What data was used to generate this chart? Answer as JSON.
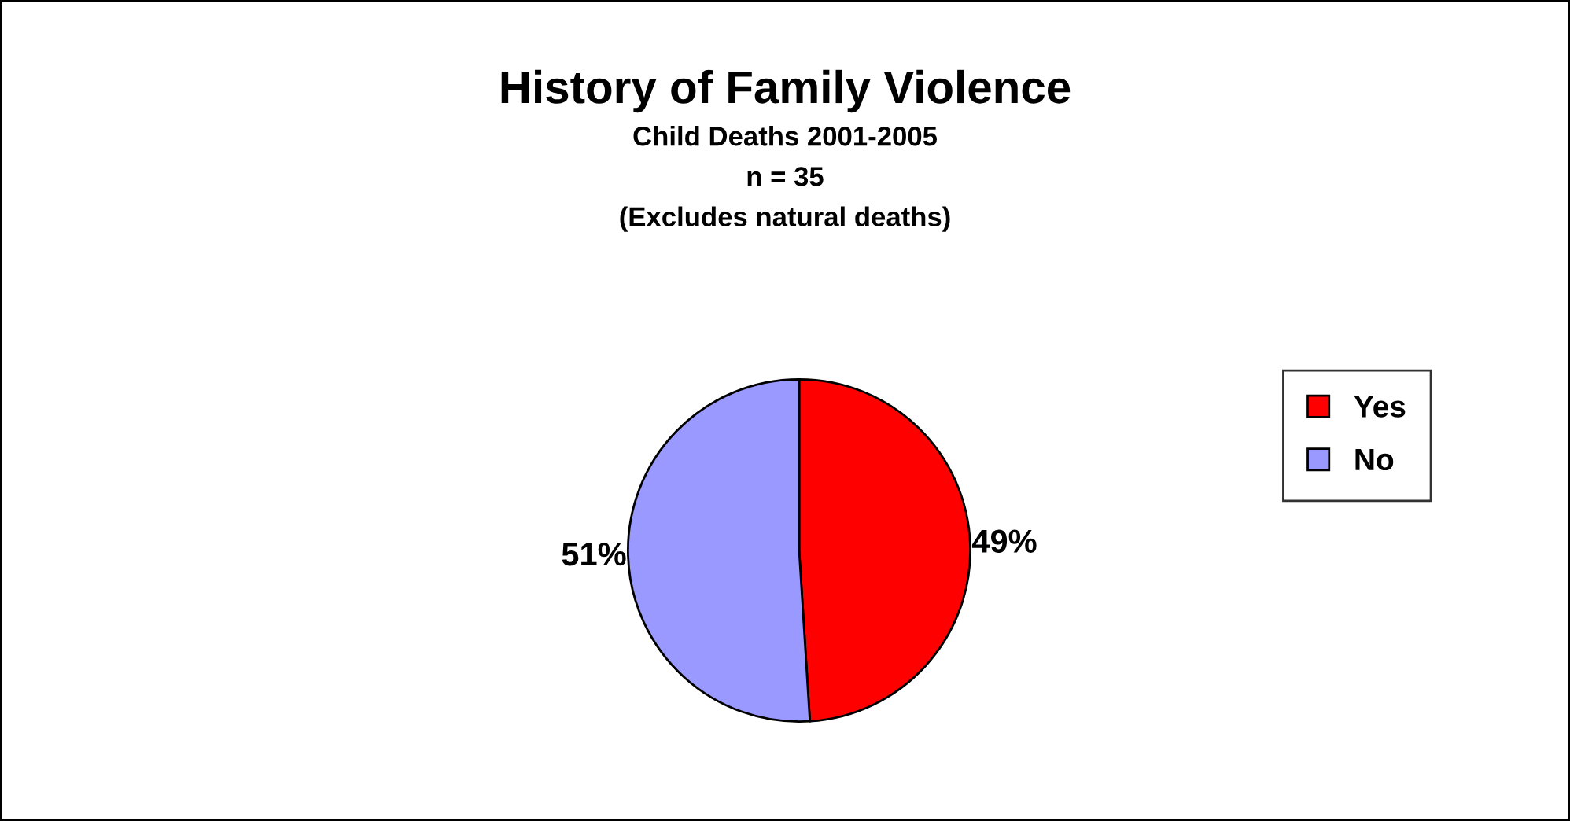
{
  "chart_data": {
    "type": "pie",
    "title": "History of Family Violence",
    "subtitle": "Child Deaths 2001-2005\nn = 35\n(Excludes natural deaths)",
    "categories": [
      "Yes",
      "No"
    ],
    "values": [
      49,
      51
    ],
    "colors": [
      "#ff0000",
      "#9999ff"
    ],
    "value_labels": [
      "49%",
      "51%"
    ],
    "legend": "right"
  }
}
